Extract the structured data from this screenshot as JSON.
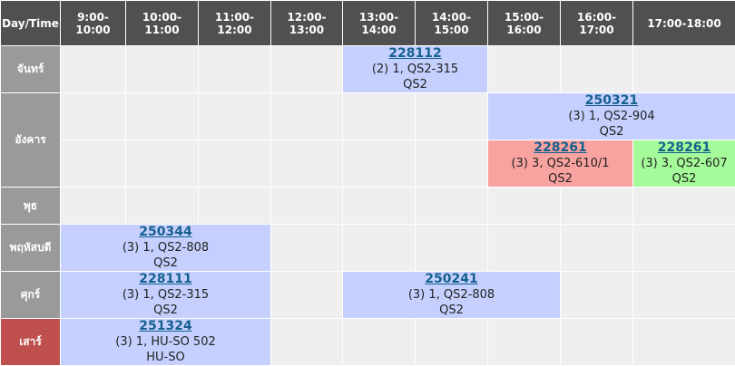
{
  "header": {
    "corner": "Day/Time",
    "times": [
      "9:00-10:00",
      "10:00-11:00",
      "11:00-12:00",
      "12:00-13:00",
      "13:00-14:00",
      "14:00-15:00",
      "15:00-16:00",
      "16:00-17:00",
      "17:00-18:00"
    ]
  },
  "days": {
    "mon": "จันทร์",
    "tue": "อังคาร",
    "wed": "พุธ",
    "thu": "พฤหัสบดี",
    "fri": "ศุกร์",
    "sat": "เสาร์"
  },
  "courses": {
    "mon_1": {
      "code": "228112",
      "section": "(2) 1, QS2-315",
      "building": "QS2"
    },
    "tue_1": {
      "code": "250321",
      "section": "(3) 1, QS2-904",
      "building": "QS2"
    },
    "tue_2": {
      "code": "228261",
      "section": "(3) 3, QS2-610/1",
      "building": "QS2"
    },
    "tue_3": {
      "code": "228261",
      "section": "(3) 3, QS2-607",
      "building": "QS2"
    },
    "thu_1": {
      "code": "250344",
      "section": "(3) 1, QS2-808",
      "building": "QS2"
    },
    "fri_1": {
      "code": "228111",
      "section": "(3) 1, QS2-315",
      "building": "QS2"
    },
    "fri_2": {
      "code": "250241",
      "section": "(3) 1, QS2-808",
      "building": "QS2"
    },
    "sat_1": {
      "code": "251324",
      "section": "(3) 1, HU-SO 502",
      "building": "HU-SO"
    }
  },
  "colors": {
    "header": "#505050",
    "day": "#9a9a9a",
    "today": "#c0504d",
    "empty": "#efefef",
    "blue": "#c5d0ff",
    "red": "#f8a3a0",
    "green": "#a5fb9a",
    "link": "#15608f"
  }
}
